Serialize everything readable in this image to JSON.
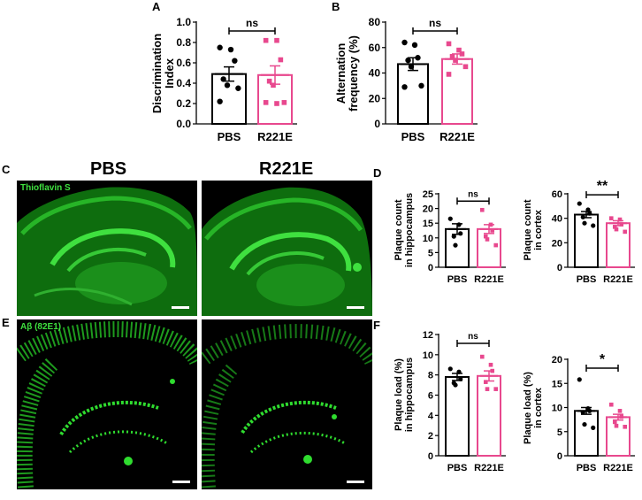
{
  "panel_labels": [
    "A",
    "B",
    "C",
    "D",
    "E",
    "F"
  ],
  "colors": {
    "pbs": "#000000",
    "r221e": "#e8488e",
    "green": "#2fdc2f",
    "bg": "#ffffff"
  },
  "micrographs": {
    "col_titles": [
      "PBS",
      "R221E"
    ],
    "c_stain_label": "Thioflavin S",
    "e_stain_label": "Aβ (82E1)"
  },
  "chart_data": [
    {
      "id": "A",
      "type": "bar",
      "categories": [
        "PBS",
        "R221E"
      ],
      "values": [
        0.49,
        0.48
      ],
      "errors": [
        0.07,
        0.09
      ],
      "ylabel": [
        "Discrimination",
        "Index"
      ],
      "ylim": [
        0,
        1.0
      ],
      "yticks": [
        "0.0",
        "0.2",
        "0.4",
        "0.6",
        "0.8",
        "1.0"
      ],
      "significance": "ns",
      "points": [
        [
          0.75,
          0.73,
          0.62,
          0.44,
          0.38,
          0.35,
          0.22
        ],
        [
          0.82,
          0.82,
          0.63,
          0.42,
          0.38,
          0.21,
          0.21,
          0.2
        ]
      ]
    },
    {
      "id": "B",
      "type": "bar",
      "categories": [
        "PBS",
        "R221E"
      ],
      "values": [
        47,
        51
      ],
      "errors": [
        5,
        4
      ],
      "ylabel": [
        "Alternation",
        "frequency (%)"
      ],
      "ylim": [
        0,
        80
      ],
      "yticks": [
        "0",
        "20",
        "40",
        "60",
        "80"
      ],
      "significance": "ns",
      "points": [
        [
          64,
          62,
          52,
          50,
          45,
          30,
          29
        ],
        [
          63,
          58,
          55,
          53,
          50,
          45,
          39
        ]
      ]
    },
    {
      "id": "D-left",
      "type": "bar",
      "categories": [
        "PBS",
        "R221E"
      ],
      "values": [
        13,
        13
      ],
      "errors": [
        1.8,
        1.5
      ],
      "ylabel": [
        "Plaque count",
        "in hippocampus"
      ],
      "ylim": [
        0,
        25
      ],
      "yticks": [
        "0",
        "5",
        "10",
        "15",
        "20",
        "25"
      ],
      "significance": "ns",
      "points": [
        [
          16.5,
          14.5,
          11.5,
          10.5,
          7.5
        ],
        [
          19.5,
          14.5,
          12.5,
          10.5,
          9.5,
          7.5
        ]
      ]
    },
    {
      "id": "D-right",
      "type": "bar",
      "categories": [
        "PBS",
        "R221E"
      ],
      "values": [
        43,
        36
      ],
      "errors": [
        2.5,
        2
      ],
      "ylabel": [
        "Plaque count",
        "in cortex"
      ],
      "ylim": [
        0,
        60
      ],
      "yticks": [
        "0",
        "20",
        "40",
        "60"
      ],
      "significance": "**",
      "points": [
        [
          52,
          47,
          44,
          41,
          36,
          34
        ],
        [
          40,
          39,
          35,
          33,
          31,
          29
        ]
      ]
    },
    {
      "id": "F-left",
      "type": "bar",
      "categories": [
        "PBS",
        "R221E"
      ],
      "values": [
        7.8,
        7.9
      ],
      "errors": [
        0.35,
        0.5
      ],
      "ylabel": [
        "Plaque load (%)",
        "in hippocampus"
      ],
      "ylim": [
        0,
        12
      ],
      "yticks": [
        "0",
        "2",
        "4",
        "6",
        "8",
        "10",
        "12"
      ],
      "significance": "ns",
      "points": [
        [
          8.6,
          8.3,
          7.6,
          7.2,
          7.0
        ],
        [
          9.8,
          9.0,
          8.4,
          7.3,
          6.6,
          6.6
        ]
      ]
    },
    {
      "id": "F-right",
      "type": "bar",
      "categories": [
        "PBS",
        "R221E"
      ],
      "values": [
        9.3,
        8.0
      ],
      "errors": [
        0.7,
        0.6
      ],
      "ylabel": [
        "Plaque load (%)",
        "in cortex"
      ],
      "ylim": [
        0,
        20
      ],
      "yticks": [
        "0",
        "5",
        "10",
        "15",
        "20"
      ],
      "significance": "*",
      "points": [
        [
          15.8,
          9.8,
          9.3,
          9.0,
          6.5,
          5.8
        ],
        [
          10.6,
          9.3,
          8.1,
          7.0,
          6.2,
          6.0
        ]
      ]
    }
  ]
}
